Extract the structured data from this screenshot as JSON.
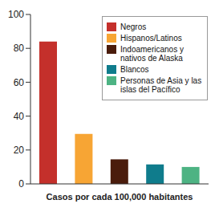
{
  "chart_data": {
    "type": "bar",
    "categories": [
      "Negros",
      "Hispanos/Latinos",
      "Indoamericanos y nativos de Alaska",
      "Blancos",
      "Personas de Asia y las islas del Pacífico"
    ],
    "values": [
      84,
      29.5,
      14.5,
      11.5,
      10
    ],
    "colors": [
      "#c4302b",
      "#f7a534",
      "#4a1c0c",
      "#0f7c8c",
      "#4db383"
    ],
    "xlabel": "Casos por cada 100,000 habitantes",
    "ylim": [
      0,
      100
    ],
    "yticks": [
      0,
      20,
      40,
      60,
      80,
      100
    ],
    "grid": false,
    "legend": "upper right",
    "tick_labels": "y"
  }
}
